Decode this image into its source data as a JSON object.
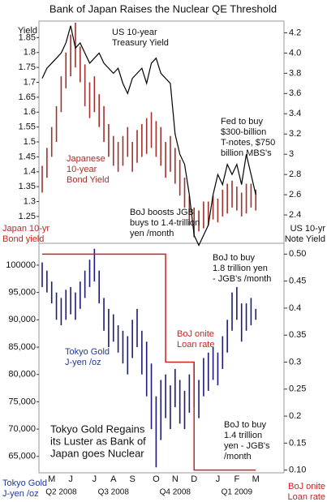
{
  "title": "Bank of Japan Raises the Nuclear QE Threshold",
  "chart_data": [
    {
      "type": "range",
      "ylim": [
        1.16,
        1.9
      ],
      "yticks": [
        1.25,
        1.3,
        1.35,
        1.4,
        1.45,
        1.5,
        1.55,
        1.6,
        1.65,
        1.7,
        1.75,
        1.8,
        1.85
      ],
      "y2lim": [
        2.12,
        4.3
      ],
      "y2ticks": [
        2.4,
        2.6,
        2.8,
        3,
        3.2,
        3.4,
        3.6,
        3.8,
        {
          "value": 4,
          "label": "4.0"
        },
        4.2
      ],
      "series": [
        {
          "kind": "range",
          "color": "#a3302a",
          "low": [
            1.33,
            1.38,
            1.45,
            1.5,
            1.6,
            1.68,
            1.72,
            1.75,
            1.7,
            1.62,
            1.58,
            1.6,
            1.55,
            1.5,
            1.45,
            1.42,
            1.4,
            1.42,
            1.45,
            1.4,
            1.43,
            1.45,
            1.46,
            1.48,
            1.45,
            1.42,
            1.38,
            1.4,
            1.36,
            1.32,
            1.28,
            1.22,
            1.18,
            1.2,
            1.21,
            1.22,
            1.24,
            1.23,
            1.25,
            1.26,
            1.28,
            1.27,
            1.25,
            1.26,
            1.28,
            1.27
          ],
          "high": [
            1.42,
            1.48,
            1.55,
            1.62,
            1.72,
            1.8,
            1.86,
            1.9,
            1.82,
            1.76,
            1.7,
            1.72,
            1.66,
            1.62,
            1.56,
            1.52,
            1.5,
            1.52,
            1.55,
            1.5,
            1.54,
            1.56,
            1.58,
            1.6,
            1.57,
            1.55,
            1.5,
            1.52,
            1.48,
            1.44,
            1.38,
            1.32,
            1.28,
            1.27,
            1.3,
            1.3,
            1.32,
            1.31,
            1.34,
            1.36,
            1.37,
            1.35,
            1.33,
            1.36,
            1.36,
            1.34
          ]
        },
        {
          "kind": "line",
          "axis": "y2",
          "color": "#000000",
          "values": [
            3.75,
            3.85,
            3.9,
            3.95,
            4.0,
            4.1,
            4.27,
            4.05,
            4.1,
            4.0,
            3.9,
            3.95,
            4.0,
            3.9,
            3.85,
            3.8,
            3.85,
            3.7,
            3.6,
            3.75,
            3.8,
            3.85,
            3.7,
            3.9,
            3.95,
            3.8,
            3.75,
            3.7,
            3.2,
            3.0,
            2.9,
            2.6,
            2.2,
            2.1,
            2.2,
            2.3,
            2.6,
            2.8,
            2.7,
            2.9,
            2.8,
            2.9,
            2.7,
            3.0,
            2.8,
            2.6
          ]
        }
      ],
      "annotations": [
        {
          "lines": [
            "Yield"
          ],
          "color": "#111111"
        },
        {
          "lines": [
            "US 10-year",
            "Treasury Yield"
          ],
          "color": "#111111"
        },
        {
          "lines": [
            "Fed to buy",
            "$300-billion",
            "T-notes, $750",
            "billion MBS's"
          ],
          "color": "#111111"
        },
        {
          "lines": [
            "Japanese",
            "10-year",
            "Bond Yield"
          ],
          "color": "#a3302a"
        },
        {
          "lines": [
            "BoJ boosts JGB",
            "buys to 1.4-trillion",
            "yen /month"
          ],
          "color": "#111111"
        },
        {
          "lines": [
            "Japan 10-yr",
            "Bond yield"
          ],
          "color": "#cc2222"
        },
        {
          "lines": [
            "US 10-yr",
            "Note Yield"
          ],
          "color": "#111111"
        }
      ]
    },
    {
      "type": "range",
      "ylim": [
        62000,
        104000
      ],
      "yticks": [
        {
          "value": 65000,
          "label": "65,000"
        },
        {
          "value": 70000,
          "label": "70,000"
        },
        {
          "value": 75000,
          "label": "75,000"
        },
        {
          "value": 80000,
          "label": "80,000"
        },
        {
          "value": 85000,
          "label": "85,000"
        },
        {
          "value": 90000,
          "label": "90,000"
        },
        {
          "value": 95000,
          "label": "95,000"
        },
        100000
      ],
      "y2lim": [
        0.095,
        0.52
      ],
      "y2ticks": [
        {
          "value": 0.1,
          "label": "0.10"
        },
        0.15,
        0.2,
        0.25,
        0.3,
        0.35,
        0.4,
        0.45,
        {
          "value": 0.5,
          "label": "0.50"
        }
      ],
      "categories": [
        null,
        null,
        "M",
        null,
        null,
        null,
        "J",
        null,
        null,
        null,
        null,
        "J",
        null,
        null,
        null,
        "A",
        null,
        null,
        null,
        "S",
        null,
        null,
        null,
        null,
        "O",
        null,
        null,
        null,
        "N",
        null,
        null,
        null,
        "D",
        null,
        null,
        null,
        null,
        "J",
        null,
        null,
        null,
        "F",
        null,
        null,
        null,
        "M"
      ],
      "quarters": [
        "Q2 2008",
        "Q3 2008",
        "Q4 2008",
        "Q1 2009"
      ],
      "series": [
        {
          "kind": "range",
          "color": "#1c1c78",
          "low": [
            96000,
            95000,
            93000,
            90000,
            89000,
            90000,
            91000,
            90000,
            92000,
            94000,
            96000,
            97000,
            93000,
            88000,
            85000,
            86000,
            84000,
            82000,
            80000,
            83000,
            85000,
            80000,
            76000,
            70000,
            63000,
            68000,
            72000,
            70000,
            74000,
            71000,
            70000,
            73000,
            74000,
            72000,
            76000,
            77000,
            79000,
            78000,
            81000,
            84000,
            88000,
            90000,
            86000,
            88000,
            89000,
            90000
          ],
          "high": [
            100500,
            99000,
            97000,
            95000,
            94000,
            95500,
            96000,
            95000,
            97000,
            99000,
            101000,
            103000,
            99000,
            94000,
            92000,
            91000,
            89000,
            88000,
            87000,
            90000,
            92000,
            88000,
            86000,
            82000,
            76000,
            79000,
            80000,
            78000,
            81000,
            79000,
            77000,
            80000,
            82000,
            79000,
            83000,
            84000,
            85000,
            84000,
            87000,
            90000,
            95000,
            96000,
            93000,
            93000,
            94000,
            92000
          ]
        },
        {
          "kind": "step",
          "axis": "y2",
          "color": "#cc2222",
          "values": [
            0.5,
            0.5,
            0.5,
            0.5,
            0.5,
            0.5,
            0.5,
            0.5,
            0.5,
            0.5,
            0.5,
            0.5,
            0.5,
            0.5,
            0.5,
            0.5,
            0.5,
            0.5,
            0.5,
            0.5,
            0.5,
            0.5,
            0.5,
            0.5,
            0.5,
            0.5,
            0.3,
            0.3,
            0.3,
            0.3,
            0.3,
            0.3,
            0.1,
            0.1,
            0.1,
            0.1,
            0.1,
            0.1,
            0.1,
            0.1,
            0.1,
            0.1,
            0.1,
            0.1,
            0.1,
            0.1
          ]
        }
      ],
      "annotations": [
        {
          "lines": [
            "BoJ to buy",
            "1.8 trillion yen",
            "- JGB's /month"
          ],
          "color": "#111111"
        },
        {
          "lines": [
            "BoJ onite",
            "Loan rate"
          ],
          "color": "#cc2222"
        },
        {
          "lines": [
            "Tokyo Gold",
            "J-yen /oz"
          ],
          "color": "#1f3a9a"
        },
        {
          "lines": [
            "Tokyo Gold Regains",
            "its Luster as Bank of",
            "Japan goes Nuclear"
          ],
          "color": "#111111"
        },
        {
          "lines": [
            "BoJ to buy",
            "1.4 trillion",
            "yen - JGB's",
            "/month"
          ],
          "color": "#111111"
        },
        {
          "lines": [
            "Tokyo Gold",
            "J-yen /oz"
          ],
          "color": "#1f3a9a"
        },
        {
          "lines": [
            "BoJ onite",
            "Loan rate"
          ],
          "color": "#cc2222"
        }
      ]
    }
  ]
}
